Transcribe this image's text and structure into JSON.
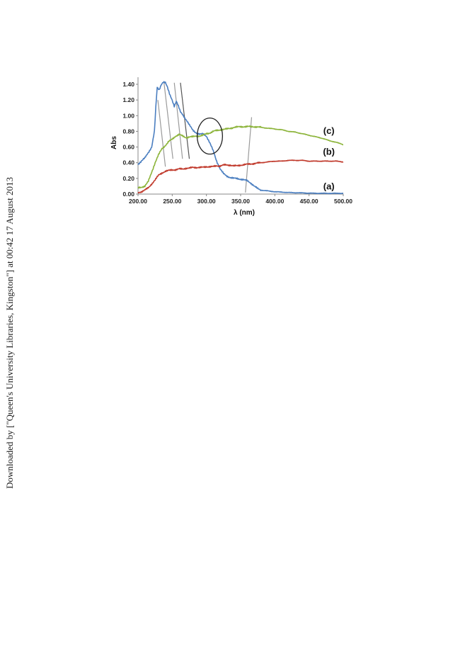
{
  "watermark": "Downloaded by [\"Queen's University Libraries, Kingston\"] at 00:42 17 August 2013",
  "chart_data": {
    "type": "line",
    "xlabel": "λ (nm)",
    "ylabel": "Abs",
    "xlim": [
      200,
      500
    ],
    "ylim": [
      0,
      1.4
    ],
    "x_ticks": [
      "200.00",
      "250.00",
      "300.00",
      "350.00",
      "400.00",
      "450.00",
      "500.00"
    ],
    "y_ticks": [
      "0.00",
      "0.20",
      "0.40",
      "0.60",
      "0.80",
      "1.00",
      "1.20",
      "1.40"
    ],
    "grid": false,
    "series": [
      {
        "name": "(a)",
        "color": "#4a7ec0",
        "x": [
          200,
          205,
          210,
          215,
          220,
          224,
          226,
          228,
          231,
          234,
          237,
          240,
          243,
          246,
          250,
          253,
          256,
          259,
          262,
          265,
          270,
          275,
          280,
          285,
          290,
          295,
          300,
          305,
          310,
          315,
          320,
          325,
          330,
          335,
          340,
          345,
          350,
          355,
          360,
          365,
          370,
          375,
          380,
          390,
          400,
          420,
          440,
          460,
          480,
          500
        ],
        "y": [
          0.38,
          0.42,
          0.46,
          0.53,
          0.6,
          0.8,
          1.1,
          1.36,
          1.33,
          1.4,
          1.43,
          1.42,
          1.36,
          1.28,
          1.2,
          1.12,
          1.18,
          1.12,
          1.05,
          1.02,
          0.95,
          0.88,
          0.82,
          0.78,
          0.76,
          0.77,
          0.74,
          0.65,
          0.55,
          0.42,
          0.32,
          0.26,
          0.23,
          0.21,
          0.2,
          0.2,
          0.19,
          0.18,
          0.17,
          0.14,
          0.1,
          0.07,
          0.05,
          0.04,
          0.03,
          0.02,
          0.015,
          0.01,
          0.01,
          0.01
        ]
      },
      {
        "name": "(b)",
        "color": "#c0392b",
        "x": [
          200,
          205,
          210,
          215,
          220,
          225,
          230,
          235,
          240,
          245,
          250,
          255,
          260,
          265,
          270,
          275,
          280,
          285,
          290,
          295,
          300,
          305,
          310,
          315,
          320,
          325,
          330,
          335,
          340,
          345,
          350,
          360,
          370,
          380,
          390,
          400,
          410,
          420,
          430,
          440,
          450,
          460,
          470,
          480,
          490,
          500
        ],
        "y": [
          0.02,
          0.03,
          0.05,
          0.08,
          0.13,
          0.18,
          0.24,
          0.27,
          0.29,
          0.3,
          0.31,
          0.31,
          0.32,
          0.32,
          0.33,
          0.33,
          0.34,
          0.34,
          0.34,
          0.34,
          0.35,
          0.35,
          0.35,
          0.36,
          0.36,
          0.37,
          0.37,
          0.37,
          0.36,
          0.36,
          0.37,
          0.38,
          0.39,
          0.4,
          0.41,
          0.42,
          0.42,
          0.43,
          0.43,
          0.43,
          0.42,
          0.42,
          0.42,
          0.42,
          0.42,
          0.41
        ]
      },
      {
        "name": "(c)",
        "color": "#8cb43a",
        "x": [
          200,
          205,
          210,
          215,
          220,
          225,
          230,
          235,
          240,
          245,
          250,
          255,
          260,
          265,
          270,
          275,
          280,
          285,
          290,
          295,
          300,
          305,
          310,
          315,
          320,
          330,
          340,
          350,
          360,
          370,
          380,
          390,
          400,
          410,
          420,
          430,
          440,
          450,
          460,
          470,
          480,
          490,
          500
        ],
        "y": [
          0.08,
          0.09,
          0.1,
          0.16,
          0.28,
          0.4,
          0.5,
          0.58,
          0.62,
          0.67,
          0.7,
          0.74,
          0.76,
          0.74,
          0.72,
          0.73,
          0.73,
          0.74,
          0.74,
          0.75,
          0.77,
          0.78,
          0.8,
          0.81,
          0.82,
          0.83,
          0.85,
          0.86,
          0.86,
          0.86,
          0.85,
          0.84,
          0.83,
          0.82,
          0.8,
          0.79,
          0.77,
          0.75,
          0.73,
          0.71,
          0.68,
          0.66,
          0.63
        ]
      }
    ],
    "annotations": {
      "lines": [
        {
          "color": "#9a9a9a",
          "x1": 229,
          "y1": 1.2,
          "x2": 240,
          "y2": 0.35
        },
        {
          "color": "#9a9a9a",
          "x1": 238,
          "y1": 1.42,
          "x2": 251,
          "y2": 0.45
        },
        {
          "color": "#9a9a9a",
          "x1": 253,
          "y1": 1.42,
          "x2": 265,
          "y2": 0.45
        },
        {
          "color": "#555555",
          "x1": 262,
          "y1": 1.42,
          "x2": 275,
          "y2": 0.45
        },
        {
          "color": "#9a9a9a",
          "x1": 366,
          "y1": 0.98,
          "x2": 357,
          "y2": 0.02
        }
      ],
      "circle": {
        "cx": 305,
        "cy": 0.74,
        "rx": 18.5,
        "ry": 0.23,
        "color": "#222222"
      },
      "curve_labels": [
        {
          "text": "(c)",
          "x": 479,
          "y": 0.77
        },
        {
          "text": "(b)",
          "x": 479,
          "y": 0.5
        },
        {
          "text": "(a)",
          "x": 479,
          "y": 0.06
        }
      ]
    }
  }
}
